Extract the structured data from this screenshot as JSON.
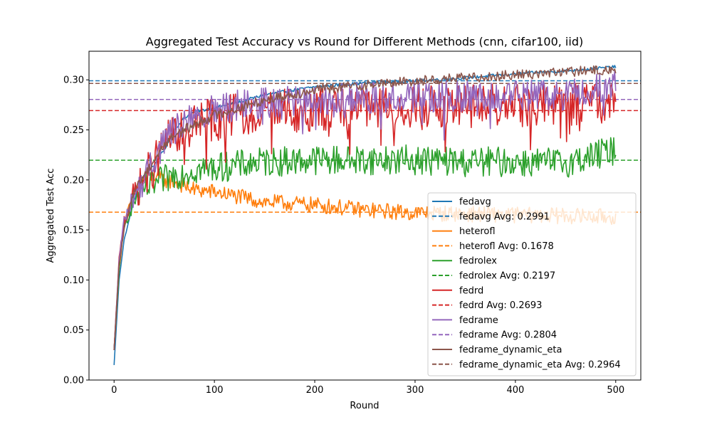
{
  "chart_data": {
    "type": "line",
    "title": "Aggregated Test Accuracy vs Round for Different Methods (cnn, cifar100, iid)",
    "xlabel": "Round",
    "ylabel": "Aggregated Test Acc",
    "xlim": [
      -25,
      525
    ],
    "ylim": [
      0.0,
      0.3286
    ],
    "xticks": [
      0,
      100,
      200,
      300,
      400,
      500
    ],
    "yticks": [
      0.0,
      0.05,
      0.1,
      0.15,
      0.2,
      0.25,
      0.3
    ],
    "ytick_labels": [
      "0.00",
      "0.05",
      "0.10",
      "0.15",
      "0.20",
      "0.25",
      "0.30"
    ],
    "grid": false,
    "legend_position": "lower-right",
    "series": [
      {
        "name": "fedavg",
        "color": "#1f77b4",
        "avg": 0.2991,
        "avg_label": "fedavg Avg: 0.2991",
        "x": [
          0,
          5,
          10,
          20,
          30,
          40,
          50,
          60,
          70,
          80,
          100,
          125,
          150,
          200,
          250,
          300,
          350,
          400,
          450,
          500
        ],
        "y": [
          0.015,
          0.1,
          0.14,
          0.18,
          0.205,
          0.215,
          0.23,
          0.25,
          0.262,
          0.268,
          0.272,
          0.278,
          0.285,
          0.293,
          0.297,
          0.299,
          0.302,
          0.306,
          0.309,
          0.313
        ]
      },
      {
        "name": "heterofl",
        "color": "#ff7f0e",
        "avg": 0.1678,
        "avg_label": "heterofl Avg: 0.1678",
        "x": [
          0,
          5,
          10,
          20,
          30,
          40,
          50,
          60,
          80,
          100,
          125,
          150,
          200,
          250,
          300,
          350,
          400,
          450,
          500
        ],
        "y": [
          0.03,
          0.11,
          0.155,
          0.19,
          0.2,
          0.205,
          0.2,
          0.198,
          0.19,
          0.188,
          0.183,
          0.178,
          0.175,
          0.17,
          0.167,
          0.166,
          0.165,
          0.164,
          0.163
        ]
      },
      {
        "name": "fedrolex",
        "color": "#2ca02c",
        "avg": 0.2197,
        "avg_label": "fedrolex Avg: 0.2197",
        "x": [
          0,
          5,
          10,
          20,
          30,
          40,
          50,
          60,
          80,
          100,
          125,
          150,
          200,
          250,
          300,
          350,
          400,
          450,
          500
        ],
        "y": [
          0.03,
          0.11,
          0.155,
          0.18,
          0.19,
          0.195,
          0.2,
          0.205,
          0.21,
          0.212,
          0.215,
          0.218,
          0.22,
          0.22,
          0.22,
          0.218,
          0.218,
          0.217,
          0.23
        ]
      },
      {
        "name": "fedrd",
        "color": "#d62728",
        "avg": 0.2693,
        "avg_label": "fedrd Avg: 0.2693",
        "x": [
          0,
          5,
          10,
          20,
          30,
          40,
          50,
          60,
          80,
          100,
          125,
          150,
          200,
          250,
          300,
          350,
          400,
          450,
          500
        ],
        "y": [
          0.03,
          0.12,
          0.16,
          0.185,
          0.2,
          0.215,
          0.235,
          0.245,
          0.255,
          0.262,
          0.265,
          0.268,
          0.27,
          0.272,
          0.273,
          0.274,
          0.275,
          0.275,
          0.277
        ]
      },
      {
        "name": "fedrame",
        "color": "#9467bd",
        "avg": 0.2804,
        "avg_label": "fedrame Avg: 0.2804",
        "x": [
          0,
          5,
          10,
          20,
          30,
          40,
          50,
          60,
          80,
          100,
          125,
          150,
          200,
          250,
          300,
          350,
          400,
          450,
          500
        ],
        "y": [
          0.03,
          0.12,
          0.16,
          0.185,
          0.2,
          0.22,
          0.24,
          0.25,
          0.262,
          0.27,
          0.275,
          0.278,
          0.28,
          0.282,
          0.283,
          0.283,
          0.284,
          0.285,
          0.295
        ]
      },
      {
        "name": "fedrame_dynamic_eta",
        "color": "#8c564b",
        "avg": 0.2964,
        "avg_label": "fedrame_dynamic_eta Avg: 0.2964",
        "x": [
          0,
          5,
          10,
          20,
          30,
          40,
          50,
          60,
          80,
          100,
          125,
          150,
          200,
          250,
          300,
          350,
          400,
          450,
          500
        ],
        "y": [
          0.03,
          0.115,
          0.15,
          0.19,
          0.205,
          0.22,
          0.235,
          0.245,
          0.255,
          0.265,
          0.272,
          0.28,
          0.29,
          0.295,
          0.299,
          0.302,
          0.305,
          0.308,
          0.31
        ]
      }
    ]
  }
}
